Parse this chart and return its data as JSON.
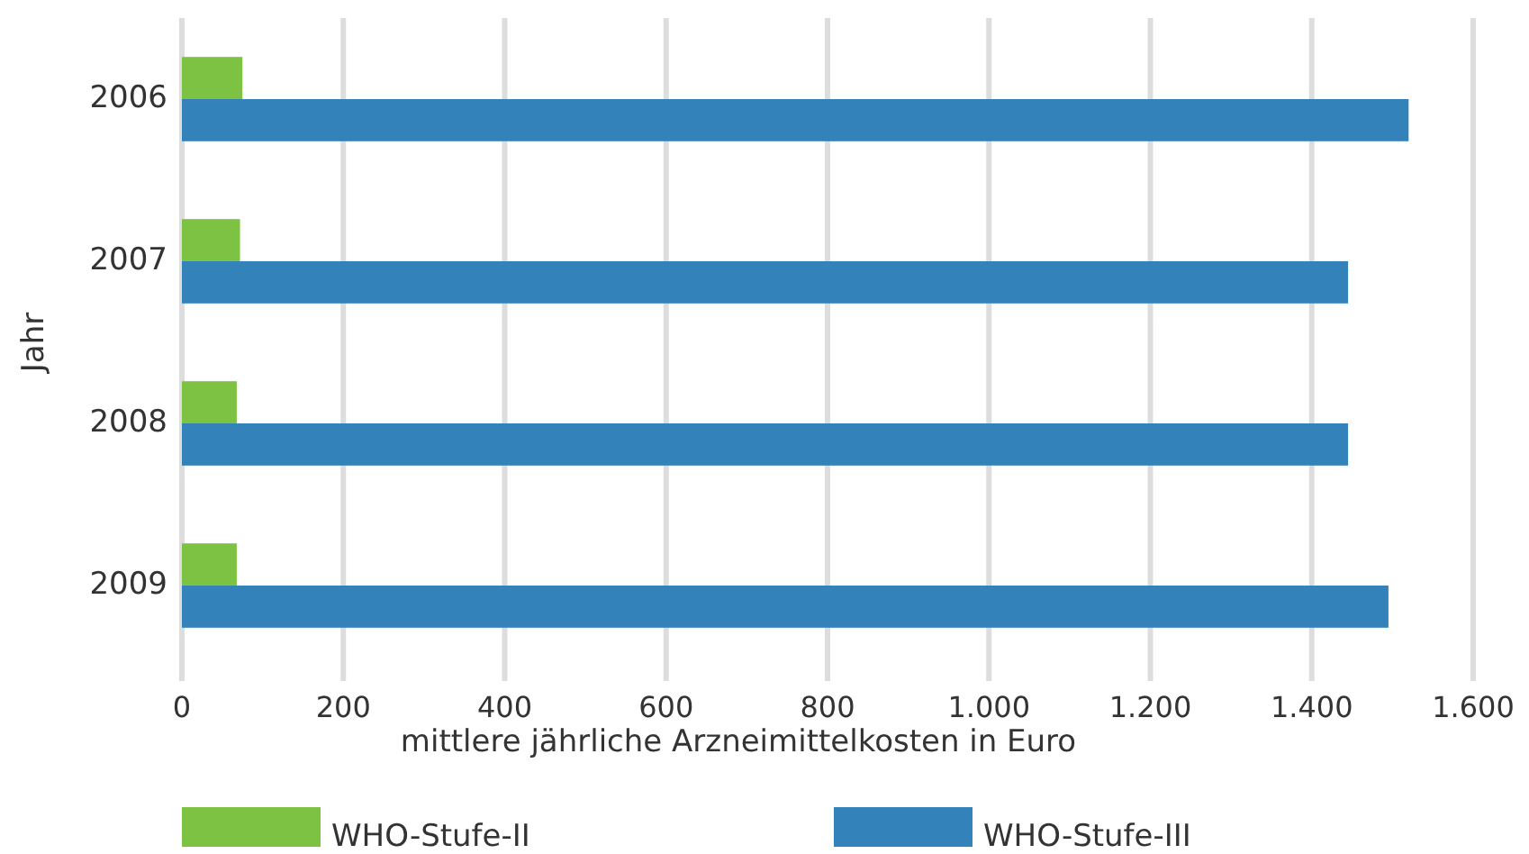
{
  "chart_data": {
    "type": "bar",
    "orientation": "horizontal",
    "ylabel": "Jahr",
    "xlabel": "mittlere jährliche Arzneimittelkosten in Euro",
    "categories": [
      "2006",
      "2007",
      "2008",
      "2009"
    ],
    "series": [
      {
        "name": "WHO-Stufe-II",
        "color": "#7dc243",
        "values": [
          75,
          72,
          68,
          68
        ]
      },
      {
        "name": "WHO-Stufe-III",
        "color": "#3382ba",
        "values": [
          1520,
          1445,
          1445,
          1495
        ]
      }
    ],
    "xlim": [
      0,
      1600
    ],
    "xticks": [
      0,
      200,
      400,
      {
        "value": 600,
        "label": "600"
      },
      800,
      {
        "value": 1000,
        "label": "1.000"
      },
      {
        "value": 1200,
        "label": "1.200"
      },
      {
        "value": 1400,
        "label": "1.400"
      },
      {
        "value": 1600,
        "label": "1.600"
      }
    ],
    "grid": "x",
    "legend": "bottom"
  }
}
